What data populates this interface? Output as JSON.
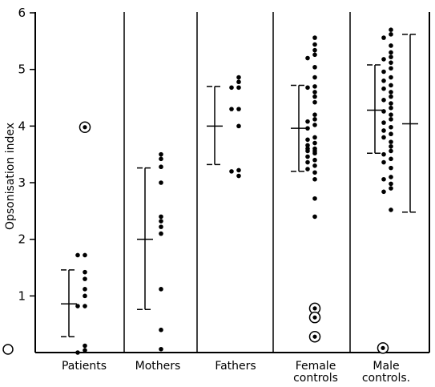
{
  "chart_data": {
    "type": "scatter",
    "title": "",
    "xlabel": "",
    "ylabel": "Opsonisation index",
    "ylim": [
      0,
      6
    ],
    "y_ticks": [
      "0",
      "1",
      "2",
      "3",
      "4",
      "5",
      "6"
    ],
    "grid": false,
    "groups": [
      {
        "label_lines": [
          "Patients"
        ],
        "points": [
          4.0,
          1.72,
          1.72,
          1.42,
          1.3,
          1.12,
          1.0,
          0.82,
          0.82,
          0.12,
          0.04,
          0.0
        ],
        "circled_points": [
          3.98
        ],
        "mean_sd": {
          "mean": 0.86,
          "lower": 0.28,
          "upper": 1.46
        }
      },
      {
        "label_lines": [
          "Mothers"
        ],
        "points": [
          3.5,
          3.42,
          3.28,
          3.0,
          2.4,
          2.32,
          2.22,
          2.1,
          1.12,
          0.4,
          0.06
        ],
        "mean_sd": {
          "mean": 2.0,
          "lower": 0.76,
          "upper": 3.26
        }
      },
      {
        "label_lines": [
          "Fathers"
        ],
        "points": [
          4.86,
          4.78,
          4.68,
          4.68,
          4.3,
          4.3,
          4.0,
          3.22,
          3.2,
          3.12
        ],
        "mean_sd": {
          "mean": 4.0,
          "lower": 3.32,
          "upper": 4.7
        }
      },
      {
        "label_lines": [
          "Female",
          "controls"
        ],
        "points": [
          5.56,
          5.44,
          5.34,
          5.26,
          5.2,
          5.04,
          4.86,
          4.7,
          4.68,
          4.6,
          4.52,
          4.42,
          4.2,
          4.12,
          4.08,
          4.02,
          3.96,
          3.8,
          3.76,
          3.7,
          3.66,
          3.6,
          3.6,
          3.56,
          3.56,
          3.52,
          3.46,
          3.4,
          3.36,
          3.3,
          3.24,
          3.18,
          3.06,
          2.72,
          2.4
        ],
        "circled_points": [
          0.78,
          0.62,
          0.28
        ],
        "mean_sd": {
          "mean": 3.96,
          "lower": 3.2,
          "upper": 4.72
        }
      },
      {
        "label_lines": [
          "Male",
          "controls."
        ],
        "points": [
          5.7,
          5.62,
          5.56,
          5.42,
          5.3,
          5.22,
          5.18,
          5.12,
          5.02,
          4.96,
          4.86,
          4.8,
          4.72,
          4.66,
          4.6,
          4.52,
          4.46,
          4.4,
          4.32,
          4.26,
          4.2,
          4.12,
          4.06,
          3.98,
          3.92,
          3.86,
          3.8,
          3.72,
          3.64,
          3.56,
          3.5,
          3.42,
          3.36,
          3.26,
          3.1,
          3.06,
          2.98,
          2.9,
          2.84,
          2.52
        ],
        "circled_points": [
          0.08
        ],
        "mean_sd": {
          "mean": 4.28,
          "lower": 3.52,
          "upper": 5.08
        },
        "range_bar": {
          "mean": 4.04,
          "lower": 2.48,
          "upper": 5.62
        }
      }
    ],
    "origin_marker": "circle",
    "colors": {
      "ink": "#000000",
      "background": "#ffffff"
    }
  }
}
